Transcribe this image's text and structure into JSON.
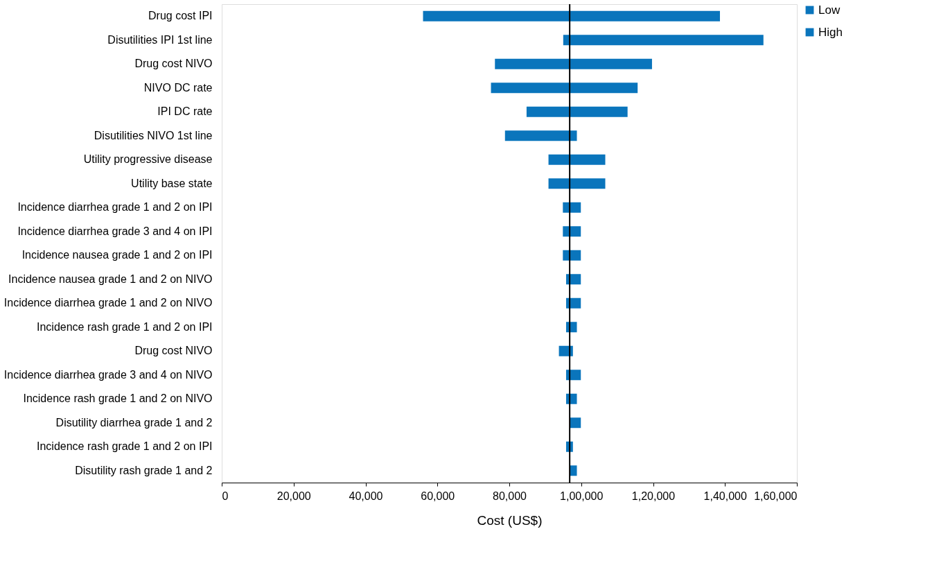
{
  "chart_data": {
    "type": "bar",
    "orientation": "horizontal",
    "xlabel": "Cost (US$)",
    "categories": [
      "Drug cost IPI",
      "Disutilities IPI 1st line",
      "Drug cost NIVO",
      "NIVO DC rate",
      "IPI DC rate",
      "Disutilities NIVO 1st line",
      "Utility progressive disease",
      "Utility base state",
      "Incidence diarrhea grade 1 and 2 on IPI",
      "Incidence diarrhea grade 3 and 4 on IPI",
      "Incidence nausea grade 1 and 2 on IPI",
      "Incidence nausea grade 1 and 2 on NIVO",
      "Incidence diarrhea grade 1 and 2 on NIVO",
      "Incidence rash grade 1 and 2 on IPI",
      "Drug cost NIVO",
      "Incidence diarrhea grade 3 and 4 on NIVO",
      "Incidence rash grade 1 and 2 on NIVO",
      "Disutility diarrhea grade 1 and 2",
      "Incidence rash grade 1 and 2 on IPI",
      "Disutility rash grade 1 and 2"
    ],
    "series": [
      {
        "name": "Low",
        "color": "#0a75bc",
        "base": [
          56000,
          95000,
          76000,
          74900,
          84800,
          78800,
          90900,
          90900,
          94900,
          94900,
          94900,
          95800,
          95800,
          95800,
          93800,
          95800,
          95800,
          null,
          95800,
          null
        ],
        "values": [
          40800,
          1800,
          20800,
          21900,
          12000,
          18000,
          5900,
          5900,
          1900,
          1900,
          1900,
          1000,
          1000,
          1000,
          3000,
          1000,
          1000,
          null,
          1000,
          null
        ]
      },
      {
        "name": "High",
        "color": "#0a75bc",
        "base": [
          96800,
          96800,
          96800,
          96800,
          96800,
          96800,
          96800,
          96800,
          96800,
          96800,
          96800,
          96800,
          96800,
          96800,
          96800,
          96800,
          96800,
          96800,
          96800,
          96800
        ],
        "values": [
          41800,
          53900,
          22900,
          18900,
          16100,
          2000,
          9900,
          9900,
          3100,
          3100,
          3100,
          3100,
          3100,
          2000,
          900,
          3100,
          2000,
          3100,
          900,
          2000
        ]
      }
    ],
    "xlim": [
      0,
      160000
    ],
    "xticks": [
      0,
      {
        "value": 20000,
        "label": "20,000"
      },
      {
        "value": 40000,
        "label": "40,000"
      },
      {
        "value": 60000,
        "label": "60,000"
      },
      {
        "value": 80000,
        "label": "80,000"
      },
      {
        "value": 100000,
        "label": "1,00,000"
      },
      {
        "value": 120000,
        "label": "1,20,000"
      },
      {
        "value": 140000,
        "label": "1,40,000"
      },
      {
        "value": 160000,
        "label": "1,60,000"
      }
    ],
    "ref_lines": [
      {
        "axis": "x",
        "value": 96800,
        "color": "#000000"
      }
    ],
    "legend": "right",
    "grid": false
  }
}
